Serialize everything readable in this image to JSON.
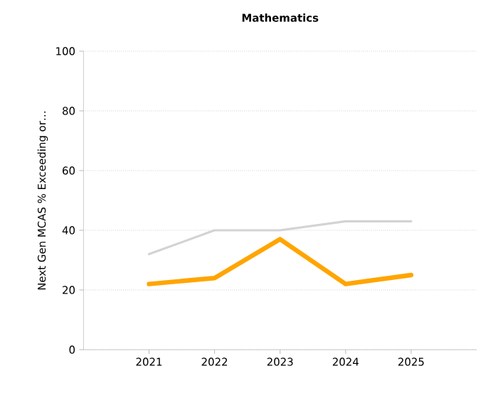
{
  "chart_data": {
    "type": "line",
    "title": "Mathematics",
    "ylabel": "Next Gen MCAS % Exceeding or…",
    "categories": [
      "2021",
      "2022",
      "2023",
      "2024",
      "2025"
    ],
    "series": [
      {
        "color": "#d3d3d3",
        "values": [
          32,
          40,
          40,
          43,
          43
        ]
      },
      {
        "color": "#ffa500",
        "values": [
          22,
          24,
          37,
          22,
          25
        ]
      }
    ],
    "ylim": [
      0,
      100
    ],
    "yticks": [
      0,
      20,
      40,
      60,
      80,
      100
    ],
    "grid": "y"
  }
}
